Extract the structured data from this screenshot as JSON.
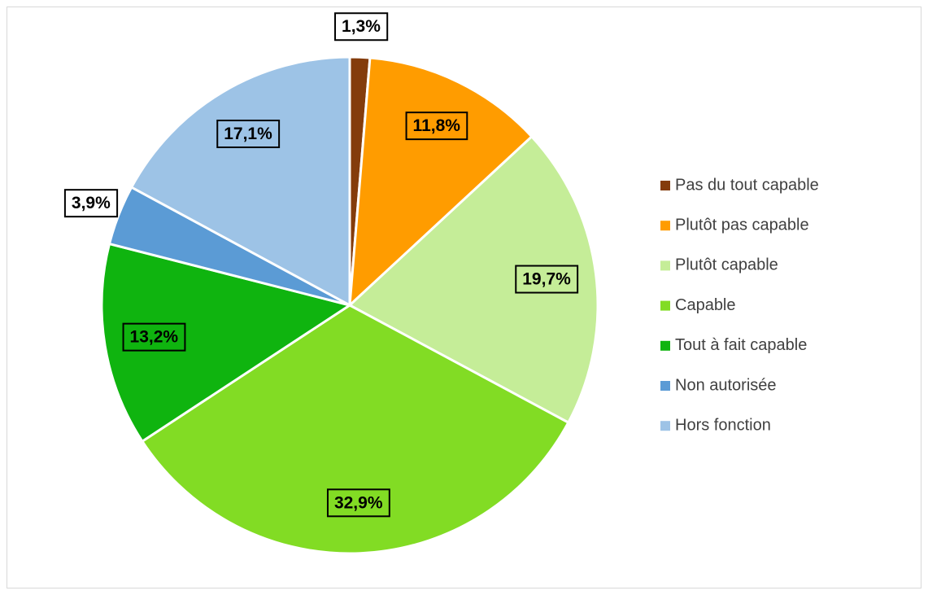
{
  "chart_data": {
    "type": "pie",
    "categories": [
      "Pas du tout capable",
      "Plutôt pas capable",
      "Plutôt capable",
      "Capable",
      "Tout à fait capable",
      "Non autorisée",
      "Hors fonction"
    ],
    "values": [
      1.3,
      11.8,
      19.7,
      32.9,
      13.2,
      3.9,
      17.1
    ],
    "value_labels": [
      "1,3%",
      "11,8%",
      "19,7%",
      "32,9%",
      "13,2%",
      "3,9%",
      "17,1%"
    ],
    "colors": [
      "#843c0c",
      "#ff9c00",
      "#c5ed98",
      "#82dc24",
      "#0fb40f",
      "#5b9bd5",
      "#9dc3e6"
    ],
    "legend": "right"
  }
}
